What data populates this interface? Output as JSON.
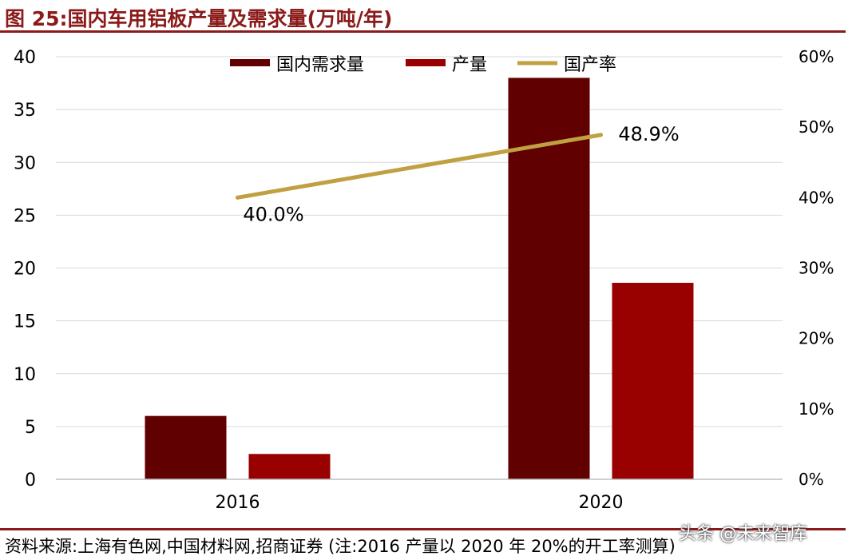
{
  "figure_title": "图 25:国内车用铝板产量及需求量(万吨/年)",
  "source_note": "资料来源:上海有色网,中国材料网,招商证券 (注:2016 产量以 2020 年 20%的开工率测算)",
  "watermark": "头条 @未来智库",
  "colors": {
    "demand": "#600000",
    "production": "#990000",
    "rate": "#C0A040",
    "title": "#8B1A1A",
    "grid": "#D9D9D9"
  },
  "chart_data": {
    "type": "bar",
    "categories": [
      "2016",
      "2020"
    ],
    "series": [
      {
        "name": "国内需求量",
        "kind": "bar",
        "axis": "left",
        "values": [
          6,
          38
        ]
      },
      {
        "name": "产量",
        "kind": "bar",
        "axis": "left",
        "values": [
          2.4,
          18.6
        ]
      },
      {
        "name": "国产率",
        "kind": "line",
        "axis": "right",
        "values": [
          40.0,
          48.9
        ],
        "labels": [
          "40.0%",
          "48.9%"
        ]
      }
    ],
    "y_left": {
      "min": 0,
      "max": 40,
      "ticks": [
        "0",
        "5",
        "10",
        "15",
        "20",
        "25",
        "30",
        "35",
        "40"
      ]
    },
    "y_right": {
      "min": 0,
      "max": 60,
      "ticks": [
        "0%",
        "10%",
        "20%",
        "30%",
        "40%",
        "50%",
        "60%"
      ]
    },
    "grid": true,
    "legend": "top-center"
  }
}
